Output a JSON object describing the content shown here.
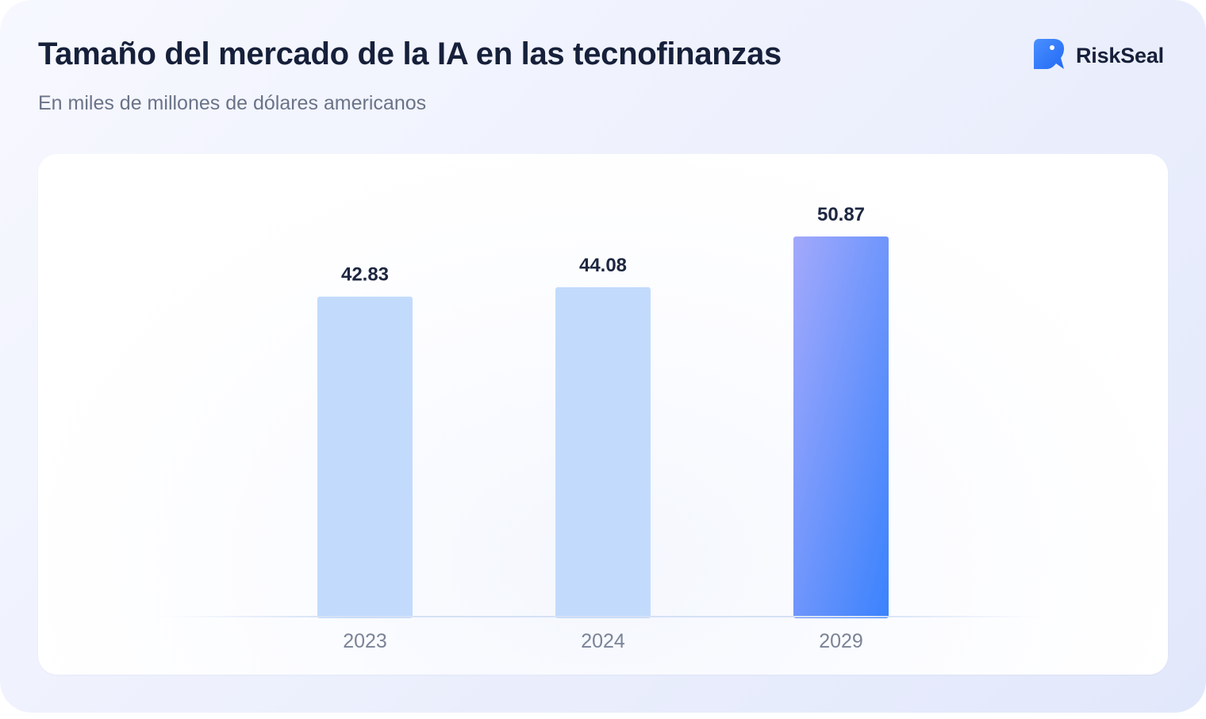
{
  "header": {
    "title": "Tamaño del mercado de la IA en las tecnofinanzas",
    "subtitle": "En miles de millones de dólares americanos"
  },
  "logo": {
    "text": "RiskSeal",
    "icon": "seal-logo-icon"
  },
  "colors": {
    "bar_default": "#c2dbfd",
    "bar_highlight_top": "#a3a9fb",
    "bar_highlight_bottom": "#3a82fd",
    "logo_blue": "#2f7bff"
  },
  "chart_data": {
    "type": "bar",
    "categories": [
      "2023",
      "2024",
      "2029"
    ],
    "values": [
      42.83,
      44.08,
      50.87
    ],
    "value_labels": [
      "42.83",
      "44.08",
      "50.87"
    ],
    "highlight_index": 2,
    "title": "Tamaño del mercado de la IA en las tecnofinanzas",
    "subtitle": "En miles de millones de dólares americanos",
    "xlabel": "",
    "ylabel": "",
    "ylim": [
      0,
      50.87
    ],
    "grid": false,
    "legend": "none"
  }
}
